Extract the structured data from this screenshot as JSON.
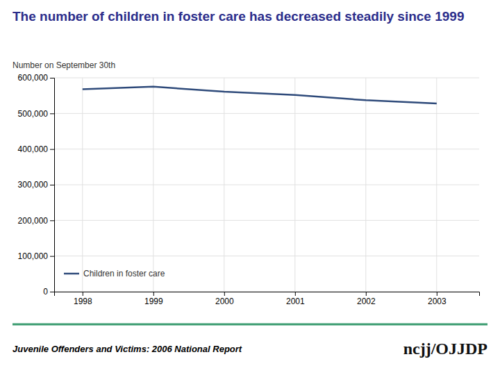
{
  "chart_data": {
    "type": "line",
    "title": "The number of children in foster care has decreased steadily since 1999",
    "y_label": "Number on September 30th",
    "x": [
      1998,
      1999,
      2000,
      2001,
      2002,
      2003
    ],
    "xlim": [
      1997.6,
      2003.6
    ],
    "xticks": [
      1998,
      1999,
      2000,
      2001,
      2002,
      2003
    ],
    "ylim": [
      0,
      600000
    ],
    "yticks": [
      0,
      {
        "value": 100000,
        "label": "100,000"
      },
      {
        "value": 200000,
        "label": "200,000"
      },
      {
        "value": 300000,
        "label": "300,000"
      },
      {
        "value": 400000,
        "label": "400,000"
      },
      {
        "value": 500000,
        "label": "500,000"
      },
      {
        "value": 600000,
        "label": "600,000"
      }
    ],
    "grid": true,
    "legend": "lower left",
    "series": [
      {
        "name": "Children in foster care",
        "color": "#2E4A7A",
        "values": [
          568000,
          575000,
          561000,
          552000,
          537000,
          528000
        ]
      }
    ],
    "annotations": [
      "Juvenile Offenders and Victims: 2006 National Report",
      "ncjj/OJJDP"
    ]
  }
}
